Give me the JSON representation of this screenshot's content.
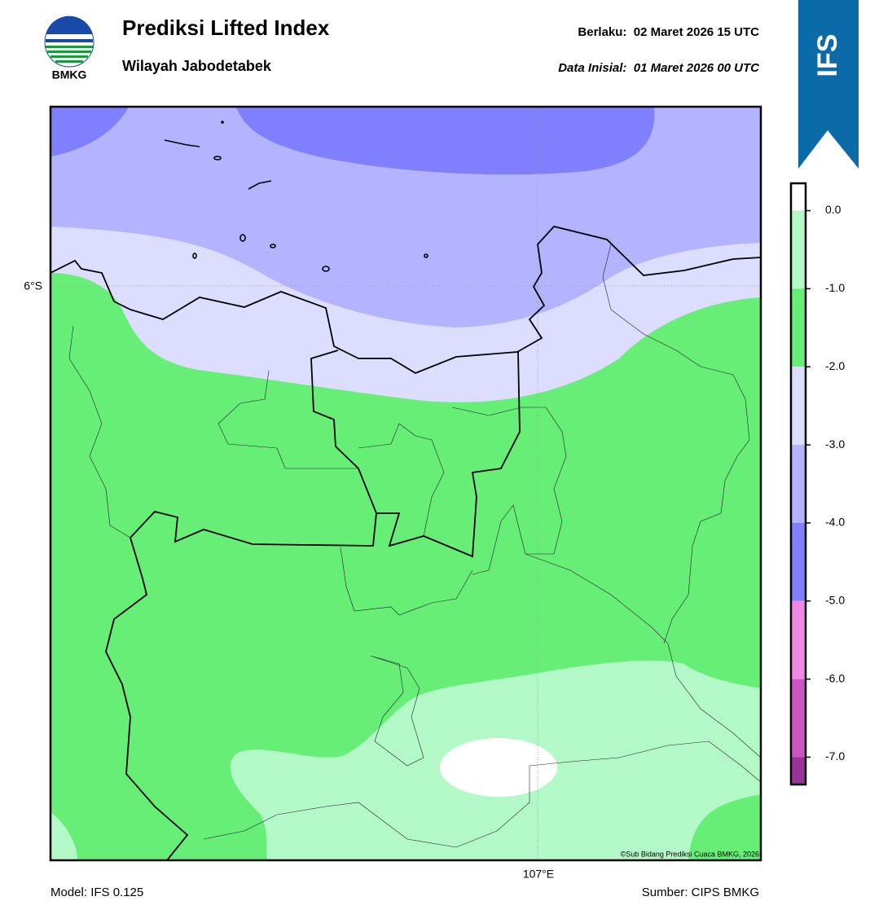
{
  "header": {
    "title": "Prediksi Lifted Index",
    "subtitle": "Wilayah Jabodetabek",
    "valid": "Berlaku:  02 Maret 2026 15 UTC",
    "init": "Data Inisial:  01 Maret 2026 00 UTC",
    "logo": "BMKG",
    "banner": "IFS"
  },
  "map": {
    "lat_label": "6°S",
    "lon_label": "107°E",
    "credit": "©Sub Bidang Prediksi Cuaca BMKG, 2026"
  },
  "colorbar": {
    "lim": [
      0.35,
      -7.35
    ],
    "levels": [
      0.35,
      0,
      -1,
      -2,
      -3,
      -4,
      -5,
      -6,
      -7,
      -7.35
    ],
    "colors": [
      "#ffffff",
      "#b3f9c8",
      "#66ee77",
      "#ddddff",
      "#b3b3ff",
      "#8080ff",
      "#ee88e4",
      "#cc55c4",
      "#993399"
    ],
    "ticks": [
      {
        "value": 0,
        "label": "0.0"
      },
      {
        "value": -1,
        "label": "-1.0"
      },
      {
        "value": -2,
        "label": "-2.0"
      },
      {
        "value": -3,
        "label": "-3.0"
      },
      {
        "value": -4,
        "label": "-4.0"
      },
      {
        "value": -5,
        "label": "-5.0"
      },
      {
        "value": -6,
        "label": "-6.0"
      },
      {
        "value": -7,
        "label": "-7.0"
      }
    ]
  },
  "footer": {
    "model": "Model: IFS 0.125",
    "source": "Sumber: CIPS BMKG"
  }
}
